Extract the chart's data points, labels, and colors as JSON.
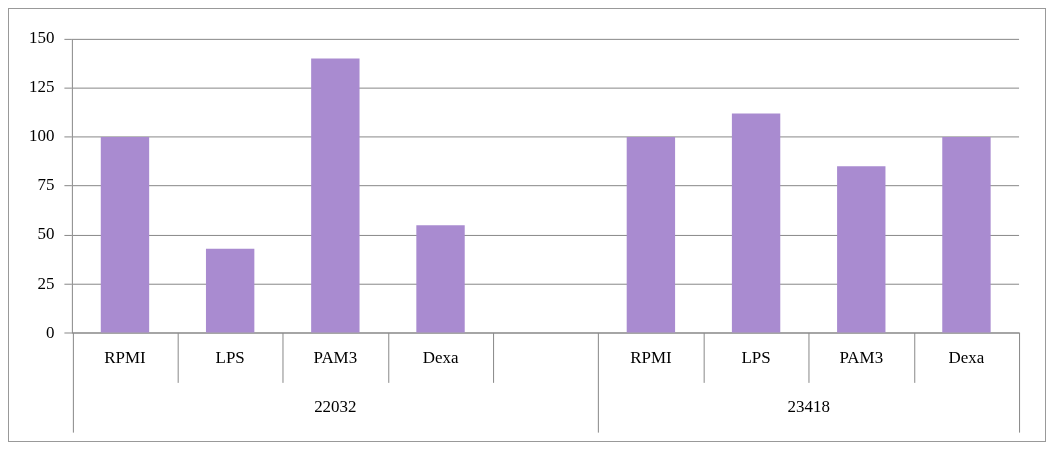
{
  "chart_data": {
    "type": "bar",
    "categories": [
      "RPMI",
      "LPS",
      "PAM3",
      "Dexa",
      null,
      "RPMI",
      "LPS",
      "PAM3",
      "Dexa"
    ],
    "values": [
      100,
      43,
      140,
      55,
      null,
      100,
      112,
      85,
      100
    ],
    "color": "#a98bd0",
    "ylim": [
      0,
      150
    ],
    "yticks": [
      0,
      25,
      50,
      75,
      100,
      125,
      150
    ],
    "grid": "y",
    "annotations": [
      "22032",
      "23418"
    ]
  }
}
